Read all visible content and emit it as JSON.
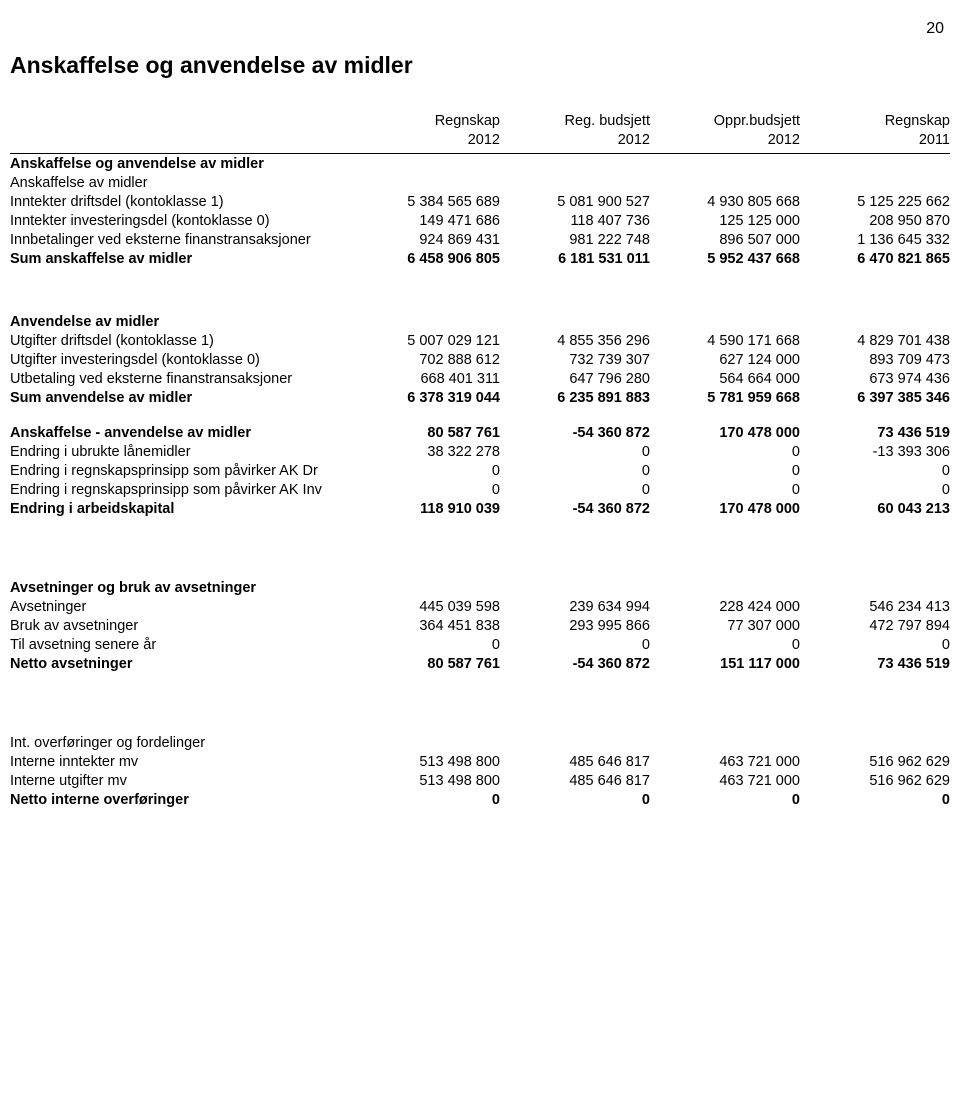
{
  "page_number": "20",
  "title": "Anskaffelse og anvendelse av midler",
  "columns": {
    "c1_top": "Regnskap",
    "c1_bot": "2012",
    "c2_top": "Reg. budsjett",
    "c2_bot": "2012",
    "c3_top": "Oppr.budsjett",
    "c3_bot": "2012",
    "c4_top": "Regnskap",
    "c4_bot": "2011"
  },
  "s1": {
    "hdr": "Anskaffelse og anvendelse av midler",
    "sub": "Anskaffelse av midler",
    "r1": {
      "l": "Inntekter driftsdel (kontoklasse 1)",
      "v": [
        "5 384 565 689",
        "5 081 900 527",
        "4 930 805 668",
        "5 125 225 662"
      ]
    },
    "r2": {
      "l": "Inntekter investeringsdel (kontoklasse 0)",
      "v": [
        "149 471 686",
        "118 407 736",
        "125 125 000",
        "208 950 870"
      ]
    },
    "r3": {
      "l": "Innbetalinger ved eksterne finanstransaksjoner",
      "v": [
        "924 869 431",
        "981 222 748",
        "896 507 000",
        "1 136 645 332"
      ]
    },
    "sum": {
      "l": "Sum anskaffelse av midler",
      "v": [
        "6 458 906 805",
        "6 181 531 011",
        "5 952 437 668",
        "6 470 821 865"
      ]
    }
  },
  "s2": {
    "hdr": "Anvendelse av midler",
    "r1": {
      "l": "Utgifter driftsdel (kontoklasse 1)",
      "v": [
        "5 007 029 121",
        "4 855 356 296",
        "4 590 171 668",
        "4 829 701 438"
      ]
    },
    "r2": {
      "l": "Utgifter investeringsdel (kontoklasse 0)",
      "v": [
        "702 888 612",
        "732 739 307",
        "627 124 000",
        "893 709 473"
      ]
    },
    "r3": {
      "l": "Utbetaling ved eksterne finanstransaksjoner",
      "v": [
        "668 401 311",
        "647 796 280",
        "564 664 000",
        "673 974 436"
      ]
    },
    "sum": {
      "l": "Sum anvendelse av midler",
      "v": [
        "6 378 319 044",
        "6 235 891 883",
        "5 781 959 668",
        "6 397 385 346"
      ]
    }
  },
  "s3": {
    "r1": {
      "l": "Anskaffelse - anvendelse av midler",
      "v": [
        "80 587 761",
        "-54 360 872",
        "170 478 000",
        "73 436 519"
      ]
    },
    "r2": {
      "l": "Endring i ubrukte lånemidler",
      "v": [
        "38 322 278",
        "0",
        "0",
        "-13 393 306"
      ]
    },
    "r3": {
      "l": "Endring i regnskapsprinsipp som påvirker AK Dr",
      "v": [
        "0",
        "0",
        "0",
        "0"
      ]
    },
    "r4": {
      "l": "Endring i regnskapsprinsipp som påvirker AK Inv",
      "v": [
        "0",
        "0",
        "0",
        "0"
      ]
    },
    "sum": {
      "l": "Endring i arbeidskapital",
      "v": [
        "118 910 039",
        "-54 360 872",
        "170 478 000",
        "60 043 213"
      ]
    }
  },
  "s4": {
    "hdr": "Avsetninger og bruk av avsetninger",
    "r1": {
      "l": "Avsetninger",
      "v": [
        "445 039 598",
        "239 634 994",
        "228 424 000",
        "546 234 413"
      ]
    },
    "r2": {
      "l": "Bruk av avsetninger",
      "v": [
        "364 451 838",
        "293 995 866",
        "77 307 000",
        "472 797 894"
      ]
    },
    "r3": {
      "l": "Til avsetning senere år",
      "v": [
        "0",
        "0",
        "0",
        "0"
      ]
    },
    "sum": {
      "l": "Netto avsetninger",
      "v": [
        "80 587 761",
        "-54 360 872",
        "151 117 000",
        "73 436 519"
      ]
    }
  },
  "s5": {
    "hdr": "Int. overføringer og fordelinger",
    "r1": {
      "l": "Interne inntekter mv",
      "v": [
        "513 498 800",
        "485 646 817",
        "463 721 000",
        "516 962 629"
      ]
    },
    "r2": {
      "l": "Interne utgifter mv",
      "v": [
        "513 498 800",
        "485 646 817",
        "463 721 000",
        "516 962 629"
      ]
    },
    "sum": {
      "l": "Netto interne overføringer",
      "v": [
        "0",
        "0",
        "0",
        "0"
      ]
    }
  }
}
